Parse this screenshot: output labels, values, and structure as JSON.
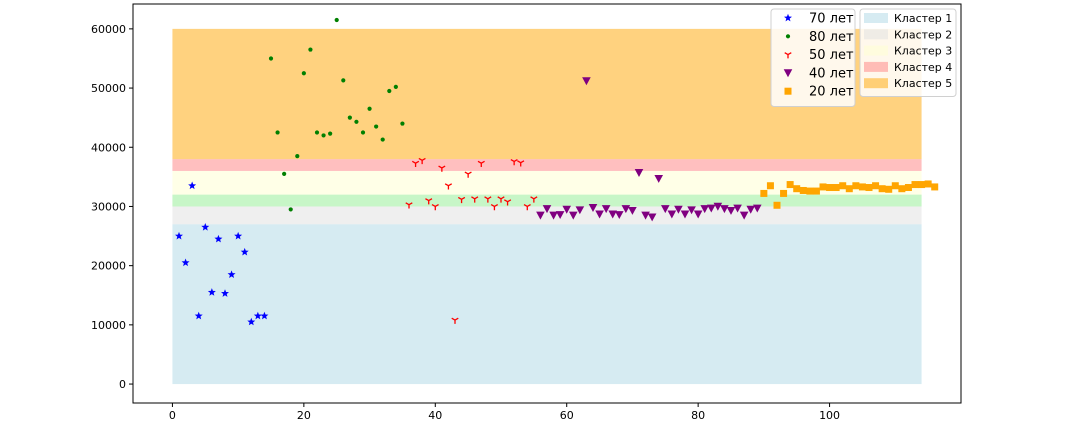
{
  "chart_data": {
    "type": "scatter",
    "xlim": [
      -6,
      120
    ],
    "ylim": [
      -3200,
      64200
    ],
    "xticks": [
      0,
      20,
      40,
      60,
      80,
      100
    ],
    "yticks": [
      0,
      10000,
      20000,
      30000,
      40000,
      50000,
      60000
    ],
    "grid": false,
    "bands_legend_placement": "top-right",
    "series_legend_placement": "top-right",
    "bands": [
      {
        "name": "Кластер 1",
        "y0": 0,
        "y1": 27000,
        "x0": 0,
        "x1": 114,
        "color": "#add8e6"
      },
      {
        "name": "Кластер 2",
        "y0": 27000,
        "y1": 30000,
        "x0": 0,
        "x1": 114,
        "color": "#e0e0e0"
      },
      {
        "name": "Кластер 3",
        "y0": 32000,
        "y1": 36000,
        "x0": 0,
        "x1": 114,
        "color": "#ffffd0"
      },
      {
        "name": "Кластер 4",
        "y0": 36000,
        "y1": 38000,
        "x0": 0,
        "x1": 114,
        "color": "#ff7f7f"
      },
      {
        "name": "Кластер 5",
        "y0": 38000,
        "y1": 60000,
        "x0": 0,
        "x1": 114,
        "color": "#ffa500"
      }
    ],
    "green_band": {
      "y0": 30000,
      "y1": 32000,
      "x0": 0,
      "x1": 114,
      "color": "#90ee90"
    },
    "series": [
      {
        "name": "70 лет",
        "marker": "star",
        "color": "#0000ff",
        "points": [
          [
            1,
            25000
          ],
          [
            2,
            20500
          ],
          [
            3,
            33500
          ],
          [
            4,
            11500
          ],
          [
            5,
            26500
          ],
          [
            6,
            15500
          ],
          [
            7,
            24500
          ],
          [
            8,
            15300
          ],
          [
            9,
            18500
          ],
          [
            10,
            25000
          ],
          [
            11,
            22300
          ],
          [
            12,
            10500
          ],
          [
            13,
            11500
          ],
          [
            14,
            11500
          ]
        ]
      },
      {
        "name": "80 лет",
        "marker": "dot",
        "color": "#008000",
        "points": [
          [
            15,
            55000
          ],
          [
            16,
            42500
          ],
          [
            17,
            35500
          ],
          [
            18,
            29500
          ],
          [
            19,
            38500
          ],
          [
            20,
            52500
          ],
          [
            21,
            56500
          ],
          [
            22,
            42500
          ],
          [
            23,
            42000
          ],
          [
            24,
            42300
          ],
          [
            25,
            61500
          ],
          [
            26,
            51300
          ],
          [
            27,
            45000
          ],
          [
            28,
            44300
          ],
          [
            29,
            42500
          ],
          [
            30,
            46500
          ],
          [
            31,
            43500
          ],
          [
            32,
            41300
          ],
          [
            33,
            49500
          ],
          [
            34,
            50200
          ],
          [
            35,
            44000
          ]
        ]
      },
      {
        "name": "50 лет",
        "marker": "tri",
        "color": "#ff0000",
        "points": [
          [
            36,
            30300
          ],
          [
            37,
            37300
          ],
          [
            38,
            37800
          ],
          [
            39,
            31000
          ],
          [
            40,
            30000
          ],
          [
            41,
            36500
          ],
          [
            42,
            33500
          ],
          [
            43,
            10800
          ],
          [
            44,
            31200
          ],
          [
            45,
            35500
          ],
          [
            46,
            31300
          ],
          [
            47,
            37300
          ],
          [
            48,
            31300
          ],
          [
            49,
            30000
          ],
          [
            50,
            31300
          ],
          [
            51,
            30800
          ],
          [
            52,
            37600
          ],
          [
            53,
            37400
          ],
          [
            54,
            30000
          ],
          [
            55,
            31300
          ]
        ]
      },
      {
        "name": "40 лет",
        "marker": "triangle-down",
        "color": "#800080",
        "points": [
          [
            56,
            28500
          ],
          [
            57,
            29600
          ],
          [
            58,
            28500
          ],
          [
            59,
            28600
          ],
          [
            60,
            29500
          ],
          [
            61,
            28500
          ],
          [
            62,
            29400
          ],
          [
            63,
            51200
          ],
          [
            64,
            29800
          ],
          [
            65,
            28700
          ],
          [
            66,
            29600
          ],
          [
            67,
            28700
          ],
          [
            68,
            28600
          ],
          [
            69,
            29600
          ],
          [
            70,
            29300
          ],
          [
            71,
            35700
          ],
          [
            72,
            28500
          ],
          [
            73,
            28200
          ],
          [
            74,
            34700
          ],
          [
            75,
            29600
          ],
          [
            76,
            28700
          ],
          [
            77,
            29500
          ],
          [
            78,
            28700
          ],
          [
            79,
            29400
          ],
          [
            80,
            28700
          ],
          [
            81,
            29600
          ],
          [
            82,
            29700
          ],
          [
            83,
            30000
          ],
          [
            84,
            29600
          ],
          [
            85,
            29300
          ],
          [
            86,
            29700
          ],
          [
            87,
            28500
          ],
          [
            88,
            29500
          ],
          [
            89,
            29700
          ]
        ]
      },
      {
        "name": "20 лет",
        "marker": "square",
        "color": "#ffa500",
        "points": [
          [
            90,
            32200
          ],
          [
            91,
            33500
          ],
          [
            92,
            30200
          ],
          [
            93,
            32200
          ],
          [
            94,
            33700
          ],
          [
            95,
            33000
          ],
          [
            96,
            32700
          ],
          [
            97,
            32600
          ],
          [
            98,
            32600
          ],
          [
            99,
            33300
          ],
          [
            100,
            33200
          ],
          [
            101,
            33200
          ],
          [
            102,
            33500
          ],
          [
            103,
            33000
          ],
          [
            104,
            33500
          ],
          [
            105,
            33300
          ],
          [
            106,
            33200
          ],
          [
            107,
            33500
          ],
          [
            108,
            33000
          ],
          [
            109,
            32900
          ],
          [
            110,
            33500
          ],
          [
            111,
            33000
          ],
          [
            112,
            33200
          ],
          [
            113,
            33700
          ],
          [
            114,
            33700
          ],
          [
            115,
            33800
          ],
          [
            116,
            33300
          ]
        ]
      }
    ]
  }
}
